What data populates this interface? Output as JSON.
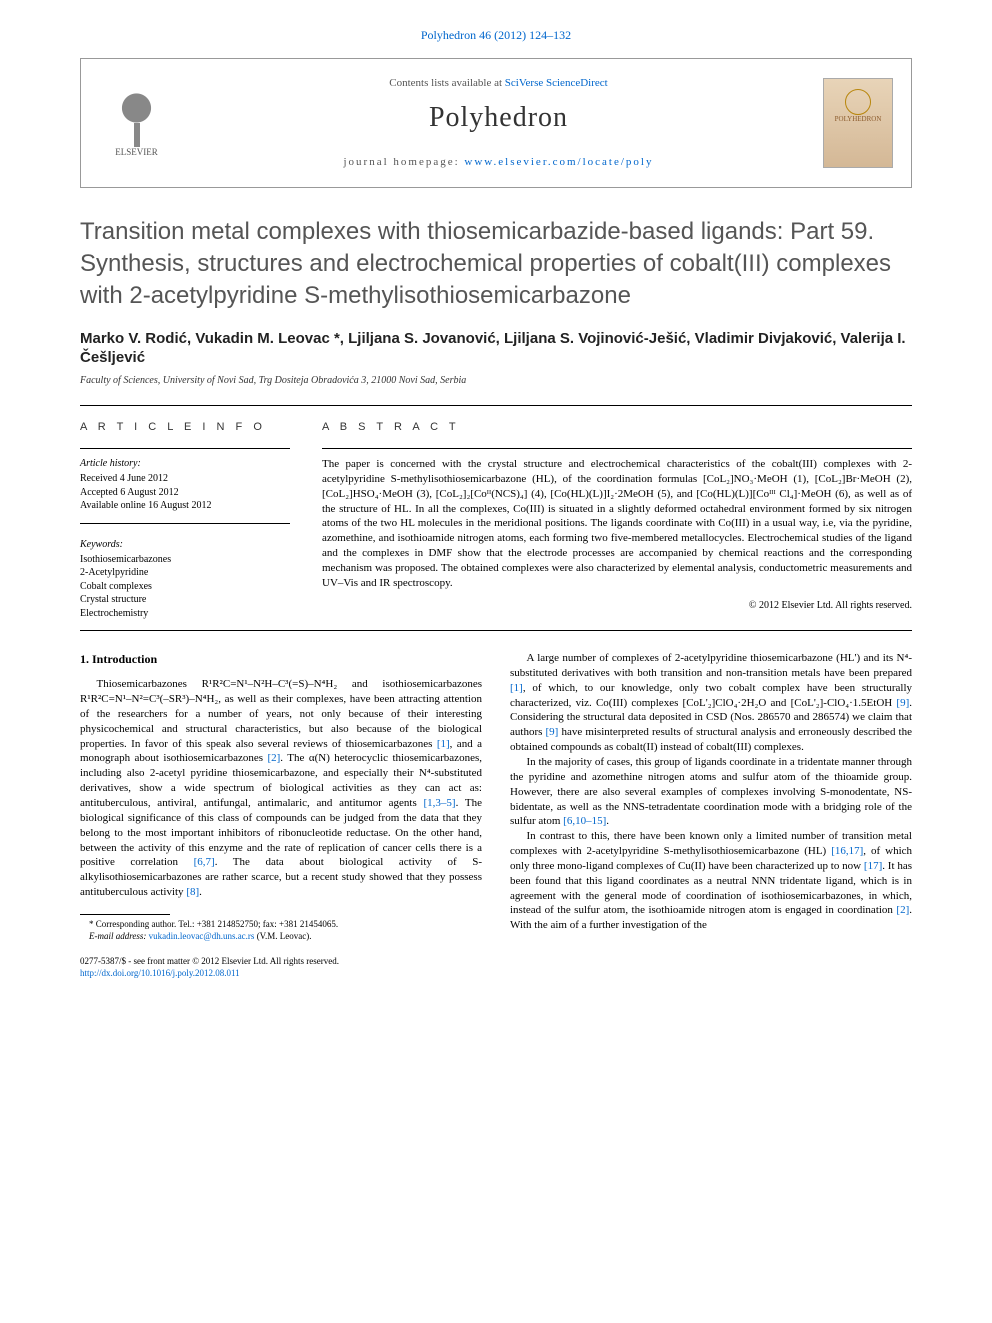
{
  "header": {
    "citation": "Polyhedron 46 (2012) 124–132",
    "contents_prefix": "Contents lists available at ",
    "contents_link": "SciVerse ScienceDirect",
    "journal_name": "Polyhedron",
    "homepage_prefix": "journal homepage: ",
    "homepage_url": "www.elsevier.com/locate/poly",
    "publisher": "ELSEVIER",
    "cover_label": "POLYHEDRON"
  },
  "article": {
    "title": "Transition metal complexes with thiosemicarbazide-based ligands: Part 59. Synthesis, structures and electrochemical properties of cobalt(III) complexes with 2-acetylpyridine S-methylisothiosemicarbazone",
    "authors": "Marko V. Rodić, Vukadin M. Leovac *, Ljiljana S. Jovanović, Ljiljana S. Vojinović-Ješić, Vladimir Divjaković, Valerija I. Češljević",
    "affiliation": "Faculty of Sciences, University of Novi Sad, Trg Dositeja Obradovića 3, 21000 Novi Sad, Serbia"
  },
  "info": {
    "label": "A R T I C L E   I N F O",
    "history_heading": "Article history:",
    "history": [
      "Received 4 June 2012",
      "Accepted 6 August 2012",
      "Available online 16 August 2012"
    ],
    "keywords_heading": "Keywords:",
    "keywords": [
      "Isothiosemicarbazones",
      "2-Acetylpyridine",
      "Cobalt complexes",
      "Crystal structure",
      "Electrochemistry"
    ]
  },
  "abstract": {
    "label": "A B S T R A C T",
    "text": "The paper is concerned with the crystal structure and electrochemical characteristics of the cobalt(III) complexes with 2-acetylpyridine S-methylisothiosemicarbazone (HL), of the coordination formulas [CoL₂]NO₃·MeOH (1), [CoL₂]Br·MeOH (2), [CoL₂]HSO₄·MeOH (3), [CoL₂]₂[Coᴵᴵ(NCS)₄] (4), [Co(HL)(L)]I₂·2MeOH (5), and [Co(HL)(L)][Coᴵᴵᴵ Cl₄]·MeOH (6), as well as of the structure of HL. In all the complexes, Co(III) is situated in a slightly deformed octahedral environment formed by six nitrogen atoms of the two HL molecules in the meridional positions. The ligands coordinate with Co(III) in a usual way, i.e, via the pyridine, azomethine, and isothioamide nitrogen atoms, each forming two five-membered metallocycles. Electrochemical studies of the ligand and the complexes in DMF show that the electrode processes are accompanied by chemical reactions and the corresponding mechanism was proposed. The obtained complexes were also characterized by elemental analysis, conductometric measurements and UV–Vis and IR spectroscopy.",
    "copyright": "© 2012 Elsevier Ltd. All rights reserved."
  },
  "body": {
    "section_heading": "1. Introduction",
    "col1_p1": "Thiosemicarbazones R¹R²C=N¹–N²H–C³(=S)–N⁴H₂ and isothiosemicarbazones R¹R²C=N¹–N²=C³(–SR³)–N⁴H₂, as well as their complexes, have been attracting attention of the researchers for a number of years, not only because of their interesting physicochemical and structural characteristics, but also because of the biological properties. In favor of this speak also several reviews of thiosemicarbazones [1], and a monograph about isothiosemicarbazones [2]. The α(N) heterocyclic thiosemicarbazones, including also 2-acetyl pyridine thiosemicarbazone, and especially their N⁴-substituted derivatives, show a wide spectrum of biological activities as they can act as: antituberculous, antiviral, antifungal, antimalaric, and antitumor agents [1,3–5]. The biological significance of this class of compounds can be judged from the data that they belong to the most important inhibitors of ribonucleotide reductase. On the other hand, between the activity of this enzyme and the rate of replication of cancer cells there is a positive correlation [6,7]. The data about biological activity of S-alkylisothiosemicarbazones are rather scarce, but a recent study showed that they possess antituberculous activity [8].",
    "col2_p1": "A large number of complexes of 2-acetylpyridine thiosemicarbazone (HL') and its N⁴-substituted derivatives with both transition and non-transition metals have been prepared [1], of which, to our knowledge, only two cobalt complex have been structurally characterized, viz. Co(III) complexes [CoL'₂]ClO₄·2H₂O and [CoL'₂]-ClO₄·1.5EtOH [9]. Considering the structural data deposited in CSD (Nos. 286570 and 286574) we claim that authors [9] have misinterpreted results of structural analysis and erroneously described the obtained compounds as cobalt(II) instead of cobalt(III) complexes.",
    "col2_p2": "In the majority of cases, this group of ligands coordinate in a tridentate manner through the pyridine and azomethine nitrogen atoms and sulfur atom of the thioamide group. However, there are also several examples of complexes involving S-monodentate, NS-bidentate, as well as the NNS-tetradentate coordination mode with a bridging role of the sulfur atom [6,10–15].",
    "col2_p3": "In contrast to this, there have been known only a limited number of transition metal complexes with 2-acetylpyridine S-methylisothiosemicarbazone (HL) [16,17], of which only three mono-ligand complexes of Cu(II) have been characterized up to now [17]. It has been found that this ligand coordinates as a neutral NNN tridentate ligand, which is in agreement with the general mode of coordination of isothiosemicarbazones, in which, instead of the sulfur atom, the isothioamide nitrogen atom is engaged in coordination [2]. With the aim of a further investigation of the"
  },
  "footnote": {
    "marker": "*",
    "text": "Corresponding author. Tel.: +381 214852750; fax: +381 21454065.",
    "email_label": "E-mail address:",
    "email": "vukadin.leovac@dh.uns.ac.rs",
    "email_suffix": "(V.M. Leovac)."
  },
  "footer": {
    "line1": "0277-5387/$ - see front matter © 2012 Elsevier Ltd. All rights reserved.",
    "doi": "http://dx.doi.org/10.1016/j.poly.2012.08.011"
  },
  "colors": {
    "link": "#0066cc",
    "title_gray": "#555555",
    "text": "#000000"
  }
}
